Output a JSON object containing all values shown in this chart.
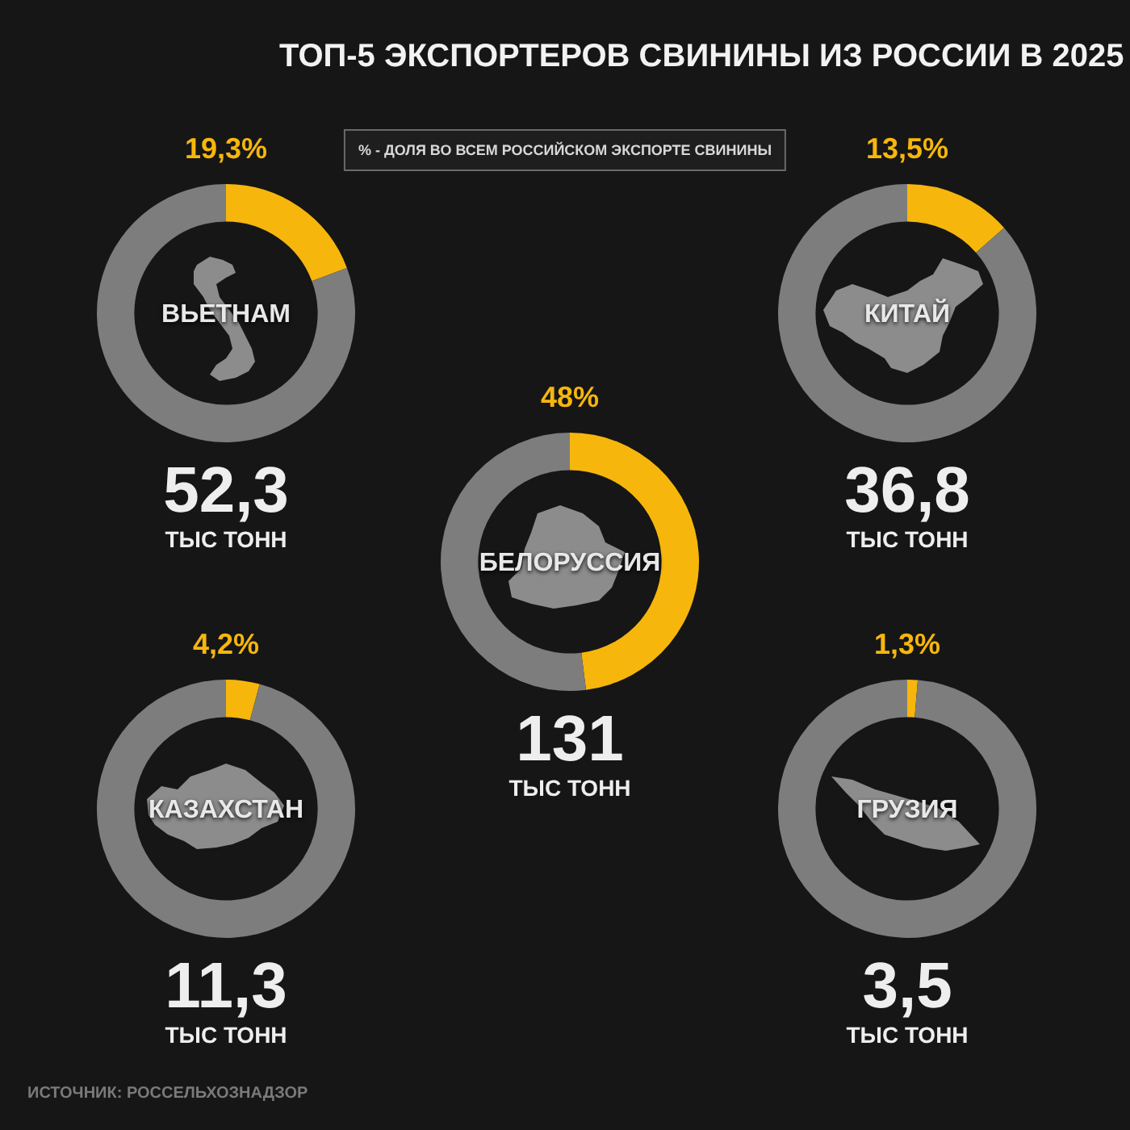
{
  "chart_data": [
    {
      "type": "other",
      "title": "ТОП-5 ЭКСПОРТЕРОВ СВИНИНЫ ИЗ РОССИИ В 2025",
      "annotations": [
        "% - ДОЛЯ ВО ВСЕМ РОССИЙСКОМ ЭКСПОРТЕ СВИНИНЫ",
        "ИСТОЧНИК: РОССЕЛЬХОЗНАДЗОР"
      ]
    },
    {
      "type": "donut",
      "title": "ВЬЕТНАМ",
      "categories": [
        null,
        null
      ],
      "values": [
        19.3,
        80.7
      ],
      "colors": [
        "#f6b60c",
        "#7d7d7d"
      ],
      "value_labels": [
        "19,3%",
        null
      ],
      "annotations": [
        "52,3",
        "ТЫС ТОНН"
      ]
    },
    {
      "type": "donut",
      "title": "КИТАЙ",
      "categories": [
        null,
        null
      ],
      "values": [
        13.5,
        86.5
      ],
      "colors": [
        "#f6b60c",
        "#7d7d7d"
      ],
      "value_labels": [
        "13,5%",
        null
      ],
      "annotations": [
        "36,8",
        "ТЫС ТОНН"
      ]
    },
    {
      "type": "donut",
      "title": "БЕЛОРУССИЯ",
      "categories": [
        null,
        null
      ],
      "values": [
        48,
        52
      ],
      "colors": [
        "#f6b60c",
        "#7d7d7d"
      ],
      "value_labels": [
        "48%",
        null
      ],
      "annotations": [
        "131",
        "ТЫС ТОНН"
      ]
    },
    {
      "type": "donut",
      "title": "КАЗАХСТАН",
      "categories": [
        null,
        null
      ],
      "values": [
        4.2,
        95.8
      ],
      "colors": [
        "#f6b60c",
        "#7d7d7d"
      ],
      "value_labels": [
        "4,2%",
        null
      ],
      "annotations": [
        "11,3",
        "ТЫС ТОНН"
      ]
    },
    {
      "type": "donut",
      "title": "ГРУЗИЯ",
      "categories": [
        null,
        null
      ],
      "values": [
        1.3,
        98.7
      ],
      "colors": [
        "#f6b60c",
        "#7d7d7d"
      ],
      "value_labels": [
        "1,3%",
        null
      ],
      "annotations": [
        "3,5",
        "ТЫС ТОНН"
      ]
    }
  ]
}
